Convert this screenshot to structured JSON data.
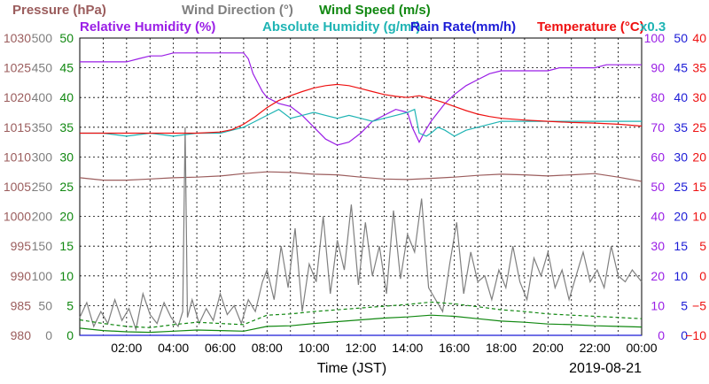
{
  "chart_data": {
    "type": "line",
    "date_label": "2019-08-21",
    "xlabel": "Time (JST)",
    "x_range_hours": [
      0,
      24
    ],
    "x_ticks": [
      "02:00",
      "04:00",
      "06:00",
      "08:00",
      "10:00",
      "12:00",
      "14:00",
      "16:00",
      "18:00",
      "20:00",
      "22:00",
      "00:00"
    ],
    "grid": true,
    "legend_placement": "top",
    "legend": [
      {
        "key": "pressure",
        "label": "Pressure (hPa)",
        "color": "#9b5d5d",
        "row": 1
      },
      {
        "key": "wind_dir",
        "label": "Wind Direction (°)",
        "color": "#7f7f7f",
        "row": 1
      },
      {
        "key": "wind_speed",
        "label": "Wind Speed (m/s)",
        "color": "#118811",
        "row": 1
      },
      {
        "key": "rh",
        "label": "Relative Humidity (%)",
        "color": "#9a1ee6",
        "row": 2
      },
      {
        "key": "ah",
        "label": "Absolute Humidity (g/m³)",
        "color": "#1fb4b4",
        "row": 2
      },
      {
        "key": "rain",
        "label": "Rain Rate(mm/h)",
        "color": "#1b1bd6",
        "row": 2
      },
      {
        "key": "temp",
        "label": "Temperature (°C)",
        "color": "#ee1111",
        "row": 2
      },
      {
        "key": "ah_scale",
        "label": "x0.3",
        "color": "#1fb4b4",
        "row": 2
      }
    ],
    "axes": {
      "pressure": {
        "label": "Pressure (hPa)",
        "range": [
          980,
          1030
        ],
        "ticks": [
          "1030",
          "1025",
          "1020",
          "1015",
          "1010",
          "1005",
          "1000",
          "995",
          "990",
          "985",
          "980"
        ],
        "color": "#9b5d5d"
      },
      "wind_dir": {
        "label": "Wind Direction (°)",
        "range": [
          0,
          500
        ],
        "ticks": [
          "500",
          "450",
          "400",
          "350",
          "300",
          "250",
          "200",
          "150",
          "100",
          "50",
          "0"
        ],
        "color": "#7f7f7f"
      },
      "wind_speed": {
        "label": "Wind Speed (m/s)",
        "range": [
          0,
          50
        ],
        "ticks": [
          "50",
          "45",
          "40",
          "35",
          "30",
          "25",
          "20",
          "15",
          "10",
          "5",
          "0"
        ],
        "color": "#118811"
      },
      "rh": {
        "label": "Relative Humidity (%)",
        "range": [
          0,
          100
        ],
        "ticks": [
          "100",
          "90",
          "80",
          "70",
          "60",
          "50",
          "40",
          "30",
          "20",
          "10",
          "0"
        ],
        "color": "#9a1ee6"
      },
      "rain": {
        "label": "Rain Rate(mm/h)",
        "range": [
          0,
          50
        ],
        "ticks": [
          "50",
          "45",
          "40",
          "35",
          "30",
          "25",
          "20",
          "15",
          "10",
          "5",
          "0"
        ],
        "color": "#1b1bd6"
      },
      "temp": {
        "label": "Temperature (°C)",
        "range": [
          -10,
          40
        ],
        "ticks": [
          "40",
          "35",
          "30",
          "25",
          "20",
          "15",
          "10",
          "5",
          "0",
          "−5",
          "−10"
        ],
        "color": "#ee1111"
      }
    },
    "series": [
      {
        "name": "Pressure (hPa)",
        "axis": "pressure",
        "color": "#9b5d5d",
        "x": [
          0,
          1,
          2,
          3,
          4,
          5,
          6,
          7,
          8,
          9,
          10,
          11,
          12,
          13,
          14,
          15,
          16,
          17,
          18,
          19,
          20,
          21,
          22,
          23,
          24
        ],
        "y": [
          1006.5,
          1006.1,
          1006.1,
          1006.3,
          1006.5,
          1006.6,
          1006.8,
          1007.2,
          1007.5,
          1007.4,
          1007.1,
          1007.0,
          1006.6,
          1006.3,
          1006.2,
          1006.4,
          1006.6,
          1006.9,
          1007.1,
          1007.0,
          1006.8,
          1007.0,
          1007.2,
          1006.6,
          1005.9
        ]
      },
      {
        "name": "Wind Direction (°)",
        "axis": "wind_dir",
        "color": "#7f7f7f",
        "x": [
          0,
          0.3,
          0.6,
          0.9,
          1.2,
          1.5,
          1.8,
          2.1,
          2.4,
          2.7,
          3.0,
          3.3,
          3.6,
          3.9,
          4.2,
          4.4,
          4.5,
          4.6,
          4.8,
          5.1,
          5.4,
          5.7,
          6.0,
          6.3,
          6.6,
          6.9,
          7.2,
          7.5,
          7.8,
          8.0,
          8.3,
          8.6,
          8.9,
          9.2,
          9.5,
          9.8,
          10.1,
          10.4,
          10.7,
          11.0,
          11.3,
          11.6,
          11.9,
          12.2,
          12.5,
          12.8,
          13.1,
          13.4,
          13.7,
          14.0,
          14.3,
          14.6,
          14.9,
          15.2,
          15.5,
          15.8,
          16.1,
          16.4,
          16.7,
          17.0,
          17.3,
          17.6,
          17.9,
          18.2,
          18.5,
          18.8,
          19.1,
          19.4,
          19.7,
          20.0,
          20.3,
          20.6,
          20.9,
          21.2,
          21.5,
          21.8,
          22.1,
          22.4,
          22.7,
          23.0,
          23.3,
          23.6,
          24.0
        ],
        "y": [
          30,
          55,
          15,
          40,
          20,
          60,
          25,
          45,
          10,
          70,
          35,
          20,
          55,
          30,
          15,
          40,
          350,
          30,
          60,
          20,
          45,
          25,
          70,
          35,
          50,
          20,
          60,
          40,
          90,
          110,
          60,
          150,
          80,
          180,
          40,
          120,
          90,
          200,
          70,
          160,
          110,
          220,
          85,
          190,
          100,
          150,
          70,
          210,
          95,
          170,
          140,
          230,
          80,
          60,
          40,
          120,
          190,
          70,
          140,
          90,
          100,
          60,
          110,
          80,
          150,
          90,
          60,
          130,
          100,
          140,
          80,
          110,
          60,
          100,
          140,
          90,
          110,
          80,
          150,
          100,
          90,
          110,
          90
        ]
      },
      {
        "name": "Wind Speed (m/s)",
        "axis": "wind_speed",
        "color": "#118811",
        "style": "solid",
        "x": [
          0,
          1,
          2,
          3,
          4,
          5,
          6,
          7,
          8,
          9,
          10,
          11,
          12,
          13,
          14,
          15,
          16,
          17,
          18,
          19,
          20,
          21,
          22,
          23,
          24
        ],
        "y": [
          1.2,
          0.8,
          0.6,
          0.5,
          0.7,
          0.9,
          0.8,
          0.7,
          1.5,
          1.6,
          2.0,
          2.3,
          2.6,
          2.9,
          3.1,
          3.4,
          3.2,
          2.8,
          2.4,
          2.2,
          1.9,
          1.8,
          1.6,
          1.5,
          1.4
        ]
      },
      {
        "name": "Wind Speed gust (m/s)",
        "axis": "wind_speed",
        "color": "#118811",
        "style": "dashed",
        "x": [
          0,
          1,
          2,
          3,
          4,
          5,
          6,
          7,
          8,
          9,
          10,
          11,
          12,
          13,
          14,
          15,
          16,
          17,
          18,
          19,
          20,
          21,
          22,
          23,
          24
        ],
        "y": [
          2.6,
          2.0,
          1.5,
          1.3,
          1.8,
          2.2,
          2.0,
          1.8,
          3.4,
          3.6,
          4.0,
          4.3,
          4.6,
          4.9,
          5.2,
          5.6,
          5.3,
          4.8,
          4.3,
          4.0,
          3.6,
          3.4,
          3.2,
          3.0,
          2.8
        ]
      },
      {
        "name": "Relative Humidity (%)",
        "axis": "rh",
        "color": "#9a1ee6",
        "x": [
          0,
          1,
          2,
          2.5,
          3,
          3.5,
          4,
          4.5,
          5,
          5.5,
          6,
          6.5,
          7,
          7.2,
          7.4,
          7.6,
          7.8,
          8,
          8.5,
          9,
          9.5,
          10,
          10.5,
          11,
          11.5,
          12,
          12.5,
          13,
          13.5,
          14,
          14.2,
          14.5,
          14.7,
          15,
          15.3,
          15.6,
          16,
          16.5,
          17,
          17.5,
          18,
          18.5,
          19,
          19.5,
          20,
          20.5,
          21,
          21.5,
          22,
          22.5,
          23,
          23.5,
          24
        ],
        "y": [
          92,
          92,
          92,
          93,
          94,
          94,
          95,
          95,
          95,
          95,
          95,
          95,
          95,
          93,
          88,
          85,
          82,
          80,
          78,
          77,
          74,
          70,
          66,
          64,
          65,
          68,
          72,
          74,
          76,
          75,
          70,
          65,
          68,
          72,
          75,
          78,
          81,
          84,
          86,
          88,
          89,
          89,
          89,
          89,
          89,
          90,
          90,
          90,
          90,
          91,
          91,
          91,
          91
        ]
      },
      {
        "name": "Absolute Humidity (g/m³)",
        "axis": "rh",
        "color": "#1fb4b4",
        "x": [
          0,
          1,
          2,
          3,
          4,
          5,
          6,
          6.5,
          7,
          7.5,
          8,
          8.5,
          9,
          9.5,
          10,
          10.5,
          11,
          11.5,
          12,
          12.5,
          13,
          13.5,
          14,
          14.3,
          14.5,
          14.8,
          15,
          15.3,
          15.6,
          16,
          16.5,
          17,
          17.5,
          18,
          19,
          20,
          21,
          22,
          23,
          24
        ],
        "y": [
          68,
          68,
          67,
          68,
          67,
          68,
          68,
          69,
          70,
          72,
          74,
          76,
          73,
          74,
          75,
          74,
          73,
          74,
          73,
          72,
          73,
          74,
          75,
          76,
          68,
          67,
          68,
          70,
          69,
          67,
          69,
          70,
          71,
          72,
          72,
          72,
          72,
          72,
          72,
          72
        ]
      },
      {
        "name": "Rain Rate(mm/h)",
        "axis": "rain",
        "color": "#1b1bd6",
        "x": [
          0,
          24
        ],
        "y": [
          0,
          0
        ]
      },
      {
        "name": "Temperature (°C)",
        "axis": "temp",
        "color": "#ee1111",
        "x": [
          0,
          1,
          2,
          3,
          4,
          5,
          6,
          6.5,
          7,
          7.5,
          8,
          8.5,
          9,
          9.5,
          10,
          10.5,
          11,
          11.5,
          12,
          12.5,
          13,
          13.5,
          14,
          14.5,
          15,
          15.5,
          16,
          16.5,
          17,
          17.5,
          18,
          19,
          20,
          21,
          22,
          23,
          24
        ],
        "y": [
          24.0,
          24.0,
          24.0,
          24.0,
          24.0,
          24.0,
          24.2,
          24.6,
          25.5,
          26.8,
          28.3,
          29.5,
          30.3,
          31.0,
          31.6,
          32.0,
          32.2,
          32.0,
          31.5,
          31.0,
          30.5,
          30.2,
          30.0,
          30.3,
          29.8,
          29.2,
          28.5,
          27.8,
          27.2,
          26.8,
          26.5,
          26.2,
          26.0,
          25.8,
          25.7,
          25.5,
          25.2
        ]
      }
    ]
  }
}
